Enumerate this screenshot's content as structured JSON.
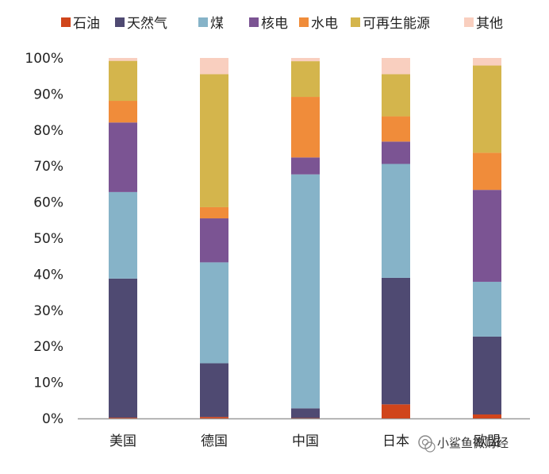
{
  "chart_data": {
    "type": "bar",
    "stacked": true,
    "title": "",
    "xlabel": "",
    "ylabel": "",
    "ylim": [
      0,
      100
    ],
    "yticks": [
      "0%",
      "10%",
      "20%",
      "30%",
      "40%",
      "50%",
      "60%",
      "70%",
      "80%",
      "90%",
      "100%"
    ],
    "categories": [
      "美国",
      "德国",
      "中国",
      "日本",
      "欧盟"
    ],
    "series": [
      {
        "name": "石油",
        "color": "#d0451b",
        "values": [
          0.2,
          0.4,
          0.1,
          3.9,
          1.1
        ]
      },
      {
        "name": "天然气",
        "color": "#4f4a72",
        "values": [
          38.6,
          14.9,
          2.7,
          35.1,
          21.6
        ]
      },
      {
        "name": "煤",
        "color": "#86b3c8",
        "values": [
          24.0,
          28.0,
          64.9,
          31.6,
          15.2
        ]
      },
      {
        "name": "核电",
        "color": "#7b5493",
        "values": [
          19.3,
          12.2,
          4.7,
          6.2,
          25.5
        ]
      },
      {
        "name": "水电",
        "color": "#f08c3a",
        "values": [
          6.0,
          3.1,
          16.8,
          7.0,
          10.3
        ]
      },
      {
        "name": "可再生能源",
        "color": "#d4b54c",
        "values": [
          11.1,
          36.9,
          9.9,
          11.7,
          24.2
        ]
      },
      {
        "name": "其他",
        "color": "#f9cfbf",
        "values": [
          0.8,
          4.5,
          0.9,
          4.5,
          2.1
        ]
      }
    ],
    "legend_position": "top",
    "grid": false
  },
  "watermark": {
    "text": "小鲨鱼微财经"
  }
}
